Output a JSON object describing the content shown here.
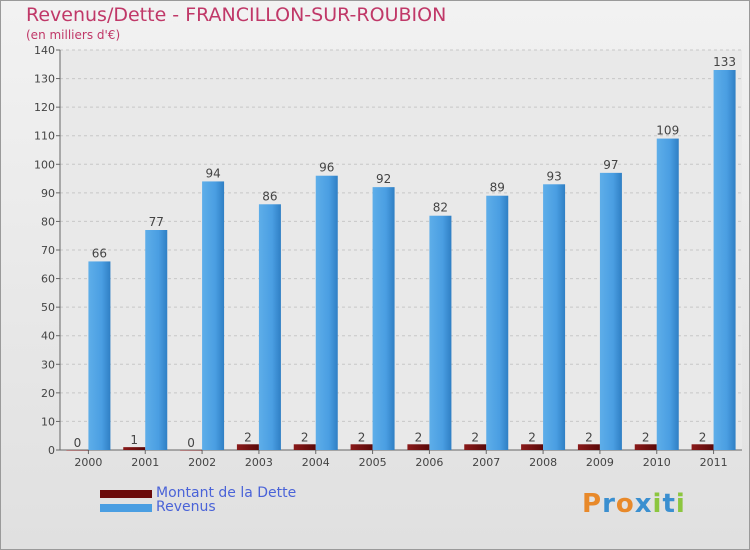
{
  "title": "Revenus/Dette - FRANCILLON-SUR-ROUBION",
  "subtitle": "(en milliers d'€)",
  "logo_text": "Proxiti",
  "colors": {
    "dette": "#6b0b0b",
    "revenus": "#4a9ee2",
    "title": "#c03868",
    "legend": "#4a63d8"
  },
  "chart_data": {
    "type": "bar",
    "title": "Revenus/Dette - FRANCILLON-SUR-ROUBION",
    "ylabel": "(en milliers d'€)",
    "xlabel": "",
    "ylim": [
      0,
      140
    ],
    "yticks": [
      0,
      10,
      20,
      30,
      40,
      50,
      60,
      70,
      80,
      90,
      100,
      110,
      120,
      130,
      140
    ],
    "grid": true,
    "categories": [
      "2000",
      "2001",
      "2002",
      "2003",
      "2004",
      "2005",
      "2006",
      "2007",
      "2008",
      "2009",
      "2010",
      "2011"
    ],
    "series": [
      {
        "name": "Montant de la Dette",
        "values": [
          0,
          1,
          0,
          2,
          2,
          2,
          2,
          2,
          2,
          2,
          2,
          2
        ]
      },
      {
        "name": "Revenus",
        "values": [
          66,
          77,
          94,
          86,
          96,
          92,
          82,
          89,
          93,
          97,
          109,
          133
        ]
      }
    ],
    "legend": "bottom-left"
  }
}
